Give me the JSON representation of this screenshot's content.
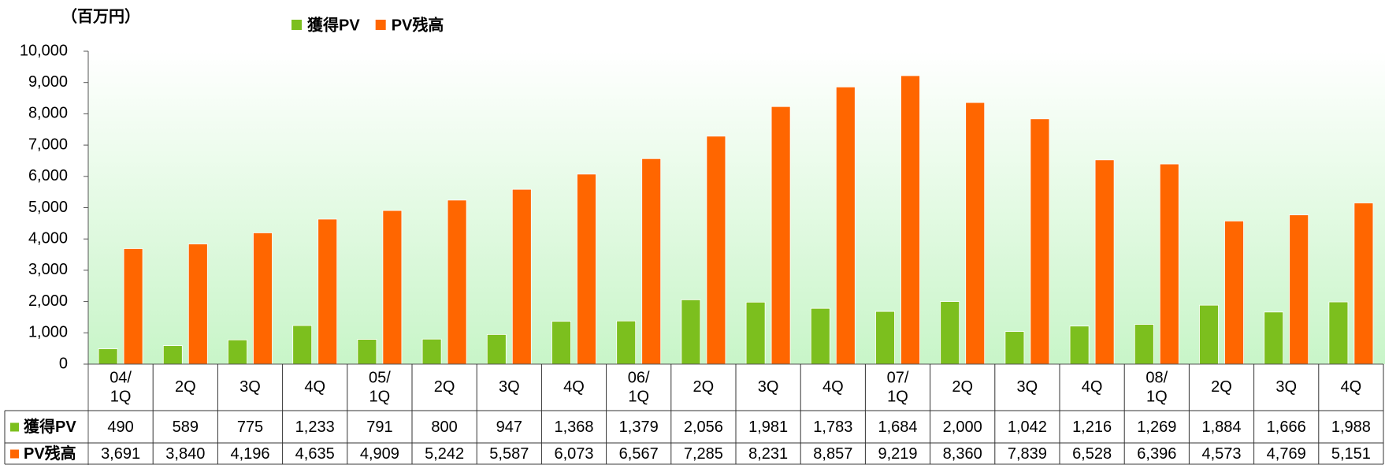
{
  "chart_data": {
    "type": "bar",
    "unit_label": "（百万円）",
    "categories": [
      "04/1Q",
      "2Q",
      "3Q",
      "4Q",
      "05/1Q",
      "2Q",
      "3Q",
      "4Q",
      "06/1Q",
      "2Q",
      "3Q",
      "4Q",
      "07/1Q",
      "2Q",
      "3Q",
      "4Q",
      "08/1Q",
      "2Q",
      "3Q",
      "4Q"
    ],
    "series": [
      {
        "name": "獲得PV",
        "color": "#7cbf1e",
        "values": [
          490,
          589,
          775,
          1233,
          791,
          800,
          947,
          1368,
          1379,
          2056,
          1981,
          1783,
          1684,
          2000,
          1042,
          1216,
          1269,
          1884,
          1666,
          1988
        ],
        "value_labels": [
          "490",
          "589",
          "775",
          "1,233",
          "791",
          "800",
          "947",
          "1,368",
          "1,379",
          "2,056",
          "1,981",
          "1,783",
          "1,684",
          "2,000",
          "1,042",
          "1,216",
          "1,269",
          "1,884",
          "1,666",
          "1,988"
        ]
      },
      {
        "name": "PV残高",
        "color": "#ff6600",
        "values": [
          3691,
          3840,
          4196,
          4635,
          4909,
          5242,
          5587,
          6073,
          6567,
          7285,
          8231,
          8857,
          9219,
          8360,
          7839,
          6528,
          6396,
          4573,
          4769,
          5151
        ],
        "value_labels": [
          "3,691",
          "3,840",
          "4,196",
          "4,635",
          "4,909",
          "5,242",
          "5,587",
          "6,073",
          "6,567",
          "7,285",
          "8,231",
          "8,857",
          "9,219",
          "8,360",
          "7,839",
          "6,528",
          "6,396",
          "4,573",
          "4,769",
          "5,151"
        ]
      }
    ],
    "ylim": [
      0,
      10000
    ],
    "yticks": [
      0,
      {
        "value": 1000,
        "label": "1,000"
      },
      {
        "value": 2000,
        "label": "2,000"
      },
      {
        "value": 3000,
        "label": "3,000"
      },
      {
        "value": 4000,
        "label": "4,000"
      },
      {
        "value": 5000,
        "label": "5,000"
      },
      {
        "value": 6000,
        "label": "6,000"
      },
      {
        "value": 7000,
        "label": "7,000"
      },
      {
        "value": 8000,
        "label": "8,000"
      },
      {
        "value": 9000,
        "label": "9,000"
      },
      {
        "value": 10000,
        "label": "10,000"
      }
    ],
    "legend": "top"
  }
}
